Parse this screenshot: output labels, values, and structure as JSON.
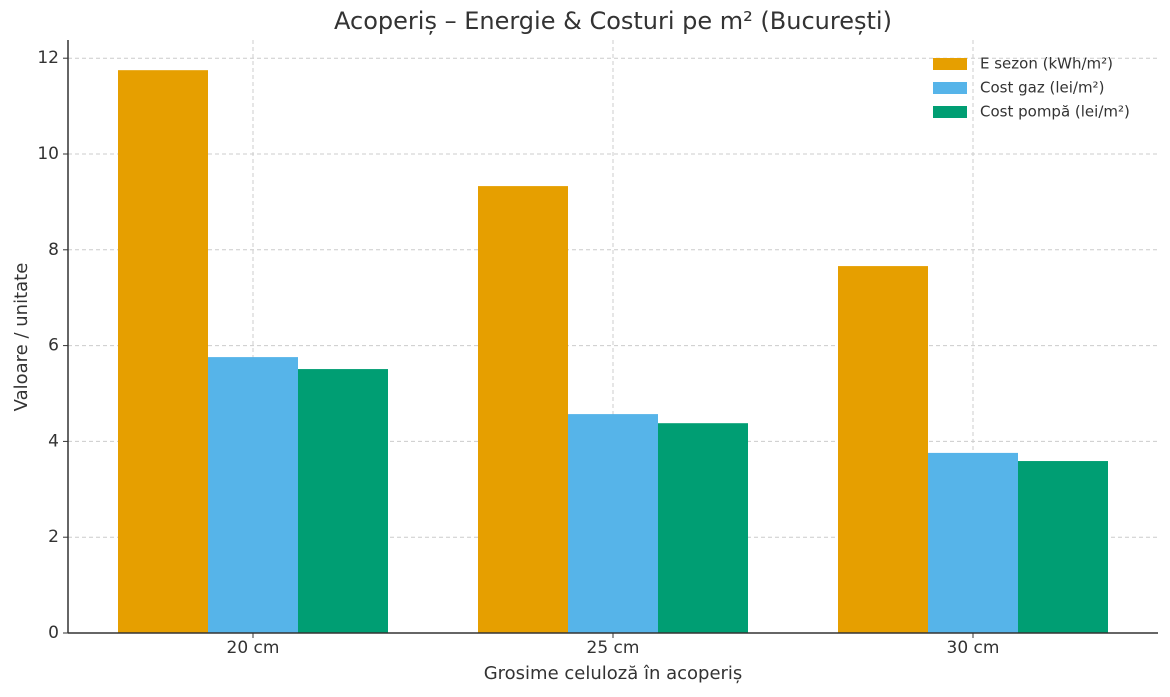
{
  "chart_data": {
    "type": "bar",
    "title": "Acoperiș – Energie & Costuri pe m² (București)",
    "x_label": "Grosime celuloză în acoperiș",
    "y_label": "Valoare / unitate",
    "categories": [
      "20 cm",
      "25 cm",
      "30 cm"
    ],
    "series": [
      {
        "name": "E sezon (kWh/m²)",
        "color": "#E69F00",
        "values": [
          11.75,
          9.33,
          7.66
        ]
      },
      {
        "name": "Cost gaz (lei/m²)",
        "color": "#56B4E9",
        "values": [
          5.76,
          4.57,
          3.76
        ]
      },
      {
        "name": "Cost pompă (lei/m²)",
        "color": "#009E73",
        "values": [
          5.51,
          4.38,
          3.59
        ]
      }
    ],
    "ylim": [
      0,
      12.38
    ],
    "yticks": [
      0,
      2,
      4,
      6,
      8,
      10,
      12
    ],
    "grid": true,
    "legend": "upper right"
  }
}
